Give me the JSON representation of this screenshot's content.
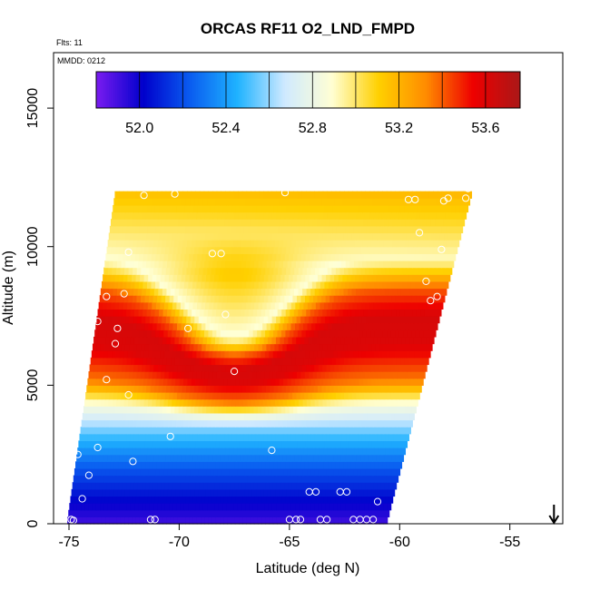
{
  "chart_data": {
    "type": "heatmap",
    "title": "ORCAS RF11 O2_LND_FMPD",
    "annotations": {
      "flights": "Flts: 11",
      "date": "MMDD: 0212"
    },
    "xlabel": "Latitude (deg N)",
    "ylabel": "Altitude (m)",
    "xlim": [
      -75.7,
      -52.6
    ],
    "ylim": [
      0,
      17000
    ],
    "x_ticks": [
      -75,
      -70,
      -65,
      -60,
      -55
    ],
    "x_tick_labels": [
      "-75",
      "-70",
      "-65",
      "-60",
      "-55"
    ],
    "y_ticks": [
      0,
      5000,
      10000,
      15000
    ],
    "y_tick_labels": [
      "0",
      "5000",
      "10000",
      "15000"
    ],
    "colorbar": {
      "range": [
        51.8,
        53.76
      ],
      "ticks": [
        52.0,
        52.4,
        52.8,
        53.2,
        53.6
      ],
      "tick_labels": [
        "52.0",
        "52.4",
        "52.8",
        "53.2",
        "53.6"
      ],
      "colors": [
        "#7a1cf0",
        "#0000cc",
        "#0a5df0",
        "#1fb3ff",
        "#cfe9ff",
        "#ffffd4",
        "#ffd000",
        "#ff8c00",
        "#ee0000",
        "#aa1818"
      ]
    },
    "field": {
      "description": "Interpolated O2 curtain (parallelogram domain)",
      "bottom_latitude_range": [
        -75.1,
        -60.6
      ],
      "top_latitude_range": [
        -72.9,
        -56.7
      ],
      "top_altitude": 12000,
      "profile_altitudes": [
        0,
        800,
        2000,
        3200,
        4300,
        5200,
        6500,
        7500,
        8500,
        9600,
        10800,
        12000
      ],
      "profile_values": [
        51.9,
        52.02,
        52.22,
        52.5,
        52.85,
        53.35,
        53.6,
        53.62,
        53.4,
        52.88,
        53.02,
        53.15
      ],
      "dip_center_latitude": -67.5,
      "dip_sigma_deg": 3.2,
      "dip_max_m": 2800
    },
    "sample_points": [
      {
        "lat": -74.9,
        "alt": 150
      },
      {
        "lat": -74.8,
        "alt": 120
      },
      {
        "lat": -74.4,
        "alt": 900
      },
      {
        "lat": -74.6,
        "alt": 2500
      },
      {
        "lat": -74.1,
        "alt": 1750
      },
      {
        "lat": -73.7,
        "alt": 2750
      },
      {
        "lat": -71.3,
        "alt": 150
      },
      {
        "lat": -71.1,
        "alt": 150
      },
      {
        "lat": -72.1,
        "alt": 2250
      },
      {
        "lat": -70.4,
        "alt": 3150
      },
      {
        "lat": -72.3,
        "alt": 4650
      },
      {
        "lat": -73.3,
        "alt": 5200
      },
      {
        "lat": -72.9,
        "alt": 6500
      },
      {
        "lat": -72.8,
        "alt": 7050
      },
      {
        "lat": -73.7,
        "alt": 7300
      },
      {
        "lat": -73.3,
        "alt": 8200
      },
      {
        "lat": -72.5,
        "alt": 8300
      },
      {
        "lat": -69.6,
        "alt": 7050
      },
      {
        "lat": -67.9,
        "alt": 7550
      },
      {
        "lat": -67.5,
        "alt": 5500
      },
      {
        "lat": -65.8,
        "alt": 2650
      },
      {
        "lat": -72.3,
        "alt": 9800
      },
      {
        "lat": -68.5,
        "alt": 9750
      },
      {
        "lat": -68.1,
        "alt": 9750
      },
      {
        "lat": -71.6,
        "alt": 11850
      },
      {
        "lat": -70.2,
        "alt": 11900
      },
      {
        "lat": -65.2,
        "alt": 11950
      },
      {
        "lat": -59.6,
        "alt": 11700
      },
      {
        "lat": -59.3,
        "alt": 11700
      },
      {
        "lat": -59.1,
        "alt": 10500
      },
      {
        "lat": -58.0,
        "alt": 11650
      },
      {
        "lat": -57.8,
        "alt": 11750
      },
      {
        "lat": -57.0,
        "alt": 11750
      },
      {
        "lat": -56.9,
        "alt": 12100
      },
      {
        "lat": -58.1,
        "alt": 9900
      },
      {
        "lat": -58.8,
        "alt": 8750
      },
      {
        "lat": -58.6,
        "alt": 8050
      },
      {
        "lat": -58.3,
        "alt": 8200
      },
      {
        "lat": -65.0,
        "alt": 150
      },
      {
        "lat": -64.7,
        "alt": 150
      },
      {
        "lat": -64.5,
        "alt": 150
      },
      {
        "lat": -64.1,
        "alt": 1150
      },
      {
        "lat": -63.8,
        "alt": 1150
      },
      {
        "lat": -62.7,
        "alt": 1150
      },
      {
        "lat": -62.4,
        "alt": 1150
      },
      {
        "lat": -63.6,
        "alt": 150
      },
      {
        "lat": -63.3,
        "alt": 150
      },
      {
        "lat": -62.1,
        "alt": 150
      },
      {
        "lat": -61.8,
        "alt": 150
      },
      {
        "lat": -61.5,
        "alt": 150
      },
      {
        "lat": -61.2,
        "alt": 150
      },
      {
        "lat": -61.0,
        "alt": 800
      }
    ],
    "arrow_marker": {
      "lat": -53.0,
      "direction": "down"
    }
  }
}
